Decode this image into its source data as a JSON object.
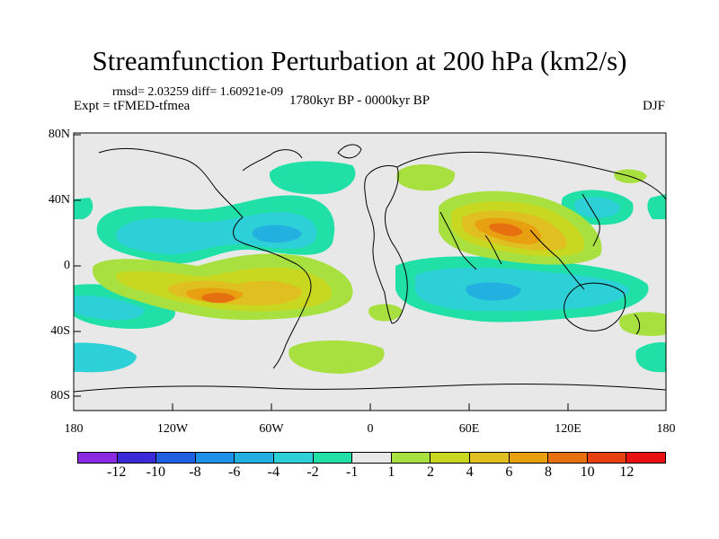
{
  "figure": {
    "title": "Streamfunction Perturbation at 200 hPa (km2/s)",
    "stats": "rmsd= 2.03259 diff= 1.60921e-09",
    "experiment": "Expt = tFMED-tfmea",
    "period": "1780kyr BP - 0000kyr BP",
    "season": "DJF"
  },
  "map": {
    "lon_ticks": [
      "180",
      "120W",
      "60W",
      "0",
      "60E",
      "120E",
      "180"
    ],
    "lat_ticks": [
      "80N",
      "40N",
      "0",
      "40S",
      "80S"
    ],
    "background_color": "#e8e8e8"
  },
  "colorbar": {
    "colors": [
      "#8a2be2",
      "#3a2bd6",
      "#1f5fe0",
      "#1e90e8",
      "#22b0e0",
      "#2ed0d8",
      "#20e0a8",
      "#e8e8e8",
      "#a8e040",
      "#c8d820",
      "#e0c020",
      "#e8a010",
      "#e67010",
      "#e84010",
      "#e81010"
    ],
    "labels": [
      "-12",
      "-10",
      "-8",
      "-6",
      "-4",
      "-2",
      "-1",
      "1",
      "2",
      "4",
      "6",
      "8",
      "10",
      "12"
    ]
  }
}
